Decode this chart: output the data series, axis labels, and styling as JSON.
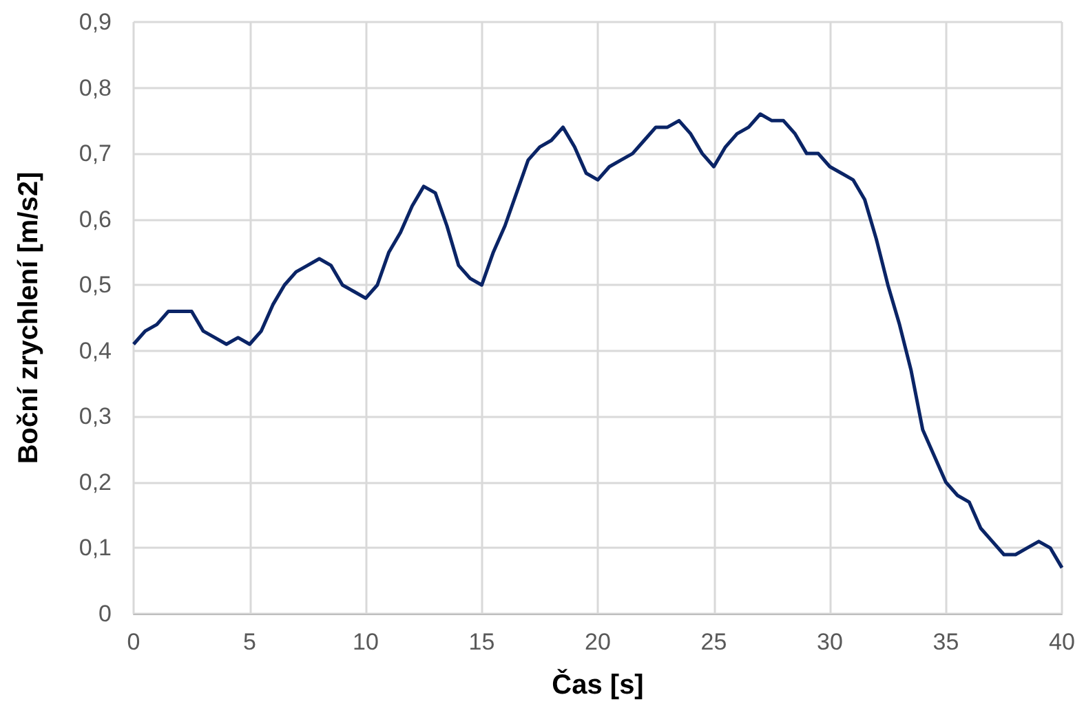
{
  "chart_data": {
    "type": "line",
    "xlabel": "Čas [s]",
    "ylabel": "Boční zrychlení [m/s2]",
    "x": [
      0,
      0.5,
      1,
      1.5,
      2,
      2.5,
      3,
      3.5,
      4,
      4.5,
      5,
      5.5,
      6,
      6.5,
      7,
      7.5,
      8,
      8.5,
      9,
      9.5,
      10,
      10.5,
      11,
      11.5,
      12,
      12.5,
      13,
      13.5,
      14,
      14.5,
      15,
      15.5,
      16,
      16.5,
      17,
      17.5,
      18,
      18.5,
      19,
      19.5,
      20,
      20.5,
      21,
      21.5,
      22,
      22.5,
      23,
      23.5,
      24,
      24.5,
      25,
      25.5,
      26,
      26.5,
      27,
      27.5,
      28,
      28.5,
      29,
      29.5,
      30,
      30.5,
      31,
      31.5,
      32,
      32.5,
      33,
      33.5,
      34,
      34.5,
      35,
      35.5,
      36,
      36.5,
      37,
      37.5,
      38,
      38.5,
      39,
      39.5,
      40
    ],
    "series": [
      {
        "color": "#0a2466",
        "values": [
          0.41,
          0.43,
          0.44,
          0.46,
          0.46,
          0.46,
          0.43,
          0.42,
          0.41,
          0.42,
          0.41,
          0.43,
          0.47,
          0.5,
          0.52,
          0.53,
          0.54,
          0.53,
          0.5,
          0.49,
          0.48,
          0.5,
          0.55,
          0.58,
          0.62,
          0.65,
          0.64,
          0.59,
          0.53,
          0.51,
          0.5,
          0.55,
          0.59,
          0.64,
          0.69,
          0.71,
          0.72,
          0.74,
          0.71,
          0.67,
          0.66,
          0.68,
          0.69,
          0.7,
          0.72,
          0.74,
          0.74,
          0.75,
          0.73,
          0.7,
          0.68,
          0.71,
          0.73,
          0.74,
          0.76,
          0.75,
          0.75,
          0.73,
          0.7,
          0.7,
          0.68,
          0.67,
          0.66,
          0.63,
          0.57,
          0.5,
          0.44,
          0.37,
          0.28,
          0.24,
          0.2,
          0.18,
          0.17,
          0.13,
          0.11,
          0.09,
          0.09,
          0.1,
          0.11,
          0.1,
          0.07
        ]
      }
    ],
    "xlim": [
      0,
      40
    ],
    "xticks": [
      0,
      5,
      10,
      15,
      20,
      25,
      30,
      35,
      40
    ],
    "ylim": [
      0,
      0.9
    ],
    "yticks": [
      {
        "value": 0,
        "label": "0"
      },
      {
        "value": 0.1,
        "label": "0,1"
      },
      {
        "value": 0.2,
        "label": "0,2"
      },
      {
        "value": 0.3,
        "label": "0,3"
      },
      {
        "value": 0.4,
        "label": "0,4"
      },
      {
        "value": 0.5,
        "label": "0,5"
      },
      {
        "value": 0.6,
        "label": "0,6"
      },
      {
        "value": 0.7,
        "label": "0,7"
      },
      {
        "value": 0.8,
        "label": "0,8"
      },
      {
        "value": 0.9,
        "label": "0,9"
      }
    ],
    "grid": true,
    "marker": "none",
    "line_style": "solid"
  }
}
